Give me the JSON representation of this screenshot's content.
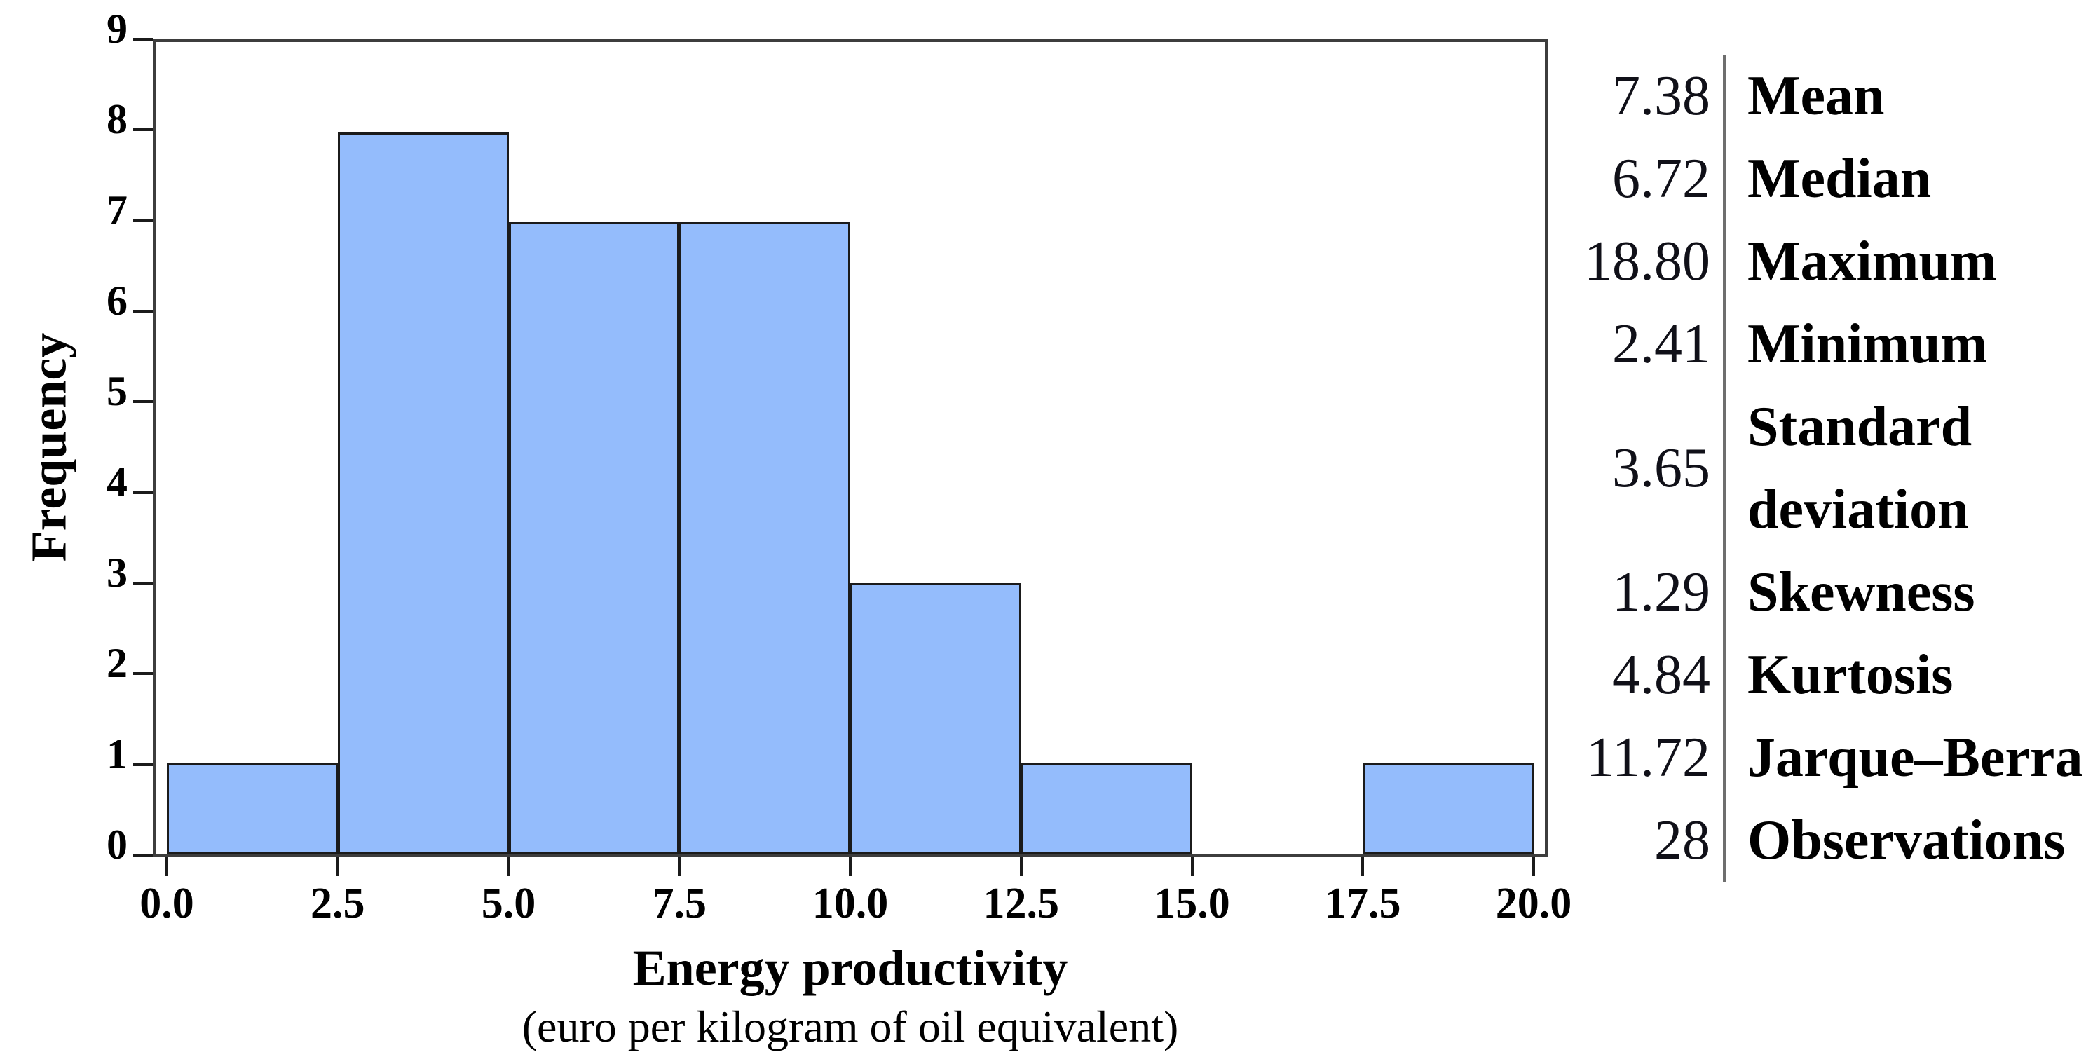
{
  "chart_data": {
    "type": "bar",
    "title": "",
    "xlabel": "Energy productivity",
    "xlabel_sub": "(euro per kilogram of oil equivalent)",
    "ylabel": "Frequency",
    "bin_width": 2.5,
    "bin_starts": [
      0,
      2.5,
      5,
      7.5,
      10,
      12.5,
      15,
      17.5
    ],
    "values": [
      1,
      8,
      7,
      7,
      3,
      1,
      0,
      1
    ],
    "x_tick_values": [
      0,
      2.5,
      5,
      7.5,
      10,
      12.5,
      15,
      17.5,
      20
    ],
    "x_tick_labels": [
      "0.0",
      "2.5",
      "5.0",
      "7.5",
      "10.0",
      "12.5",
      "15.0",
      "17.5",
      "20.0"
    ],
    "y_tick_values": [
      0,
      1,
      2,
      3,
      4,
      5,
      6,
      7,
      8,
      9
    ],
    "y_tick_labels": [
      "0",
      "1",
      "2",
      "3",
      "4",
      "5",
      "6",
      "7",
      "8",
      "9"
    ],
    "xlim": [
      0,
      20
    ],
    "ylim": [
      0,
      9
    ],
    "grid": false,
    "bar_color": "#94bcfc",
    "bar_border_color": "#1b1b1b",
    "axis_color": "#3d3d3d"
  },
  "stats_panel": {
    "rows": [
      {
        "value": "7.38",
        "label": "Mean"
      },
      {
        "value": "6.72",
        "label": "Median"
      },
      {
        "value": "18.80",
        "label": "Maximum"
      },
      {
        "value": "2.41",
        "label": "Minimum"
      },
      {
        "value": "3.65",
        "label": "Standard deviation"
      },
      {
        "value": "1.29",
        "label": "Skewness"
      },
      {
        "value": "4.84",
        "label": "Kurtosis"
      },
      {
        "value": "11.72",
        "label": "Jarque–Berra"
      },
      {
        "value": "28",
        "label": "Observations"
      }
    ]
  }
}
